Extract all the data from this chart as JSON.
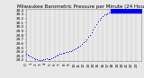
{
  "title": "Milwaukee Barometric Pressure per Minute (24 Hours)",
  "background_color": "#e8e8e8",
  "plot_bg_color": "#e8e8e8",
  "grid_color": "#aaaaaa",
  "dot_color": "#0000ff",
  "highlight_color": "#0000ff",
  "xlim": [
    0,
    1440
  ],
  "ylim": [
    29.18,
    30.42
  ],
  "xtick_hours": [
    0,
    1,
    2,
    3,
    4,
    5,
    6,
    7,
    8,
    9,
    10,
    11,
    12,
    13,
    14,
    15,
    16,
    17,
    18,
    19,
    20,
    21,
    22,
    23
  ],
  "ytick_labels": [
    "29.2",
    "29.3",
    "29.4",
    "29.5",
    "29.6",
    "29.7",
    "29.8",
    "29.9",
    "30.0",
    "30.1",
    "30.2",
    "30.3",
    "30.4"
  ],
  "ytick_vals": [
    29.2,
    29.3,
    29.4,
    29.5,
    29.6,
    29.7,
    29.8,
    29.9,
    30.0,
    30.1,
    30.2,
    30.3,
    30.4
  ],
  "pressure_data": [
    [
      0,
      29.35
    ],
    [
      20,
      29.32
    ],
    [
      40,
      29.3
    ],
    [
      60,
      29.28
    ],
    [
      80,
      29.26
    ],
    [
      100,
      29.24
    ],
    [
      120,
      29.22
    ],
    [
      140,
      29.21
    ],
    [
      160,
      29.2
    ],
    [
      180,
      29.2
    ],
    [
      200,
      29.2
    ],
    [
      220,
      29.22
    ],
    [
      240,
      29.23
    ],
    [
      260,
      29.24
    ],
    [
      280,
      29.23
    ],
    [
      300,
      29.23
    ],
    [
      320,
      29.25
    ],
    [
      340,
      29.27
    ],
    [
      360,
      29.28
    ],
    [
      380,
      29.3
    ],
    [
      400,
      29.32
    ],
    [
      420,
      29.34
    ],
    [
      440,
      29.36
    ],
    [
      460,
      29.37
    ],
    [
      480,
      29.38
    ],
    [
      500,
      29.39
    ],
    [
      520,
      29.4
    ],
    [
      540,
      29.41
    ],
    [
      560,
      29.42
    ],
    [
      580,
      29.44
    ],
    [
      600,
      29.46
    ],
    [
      620,
      29.48
    ],
    [
      640,
      29.5
    ],
    [
      660,
      29.52
    ],
    [
      680,
      29.55
    ],
    [
      700,
      29.58
    ],
    [
      720,
      29.62
    ],
    [
      740,
      29.66
    ],
    [
      760,
      29.7
    ],
    [
      780,
      29.75
    ],
    [
      800,
      29.8
    ],
    [
      820,
      29.86
    ],
    [
      840,
      29.93
    ],
    [
      860,
      30.0
    ],
    [
      880,
      30.07
    ],
    [
      900,
      30.13
    ],
    [
      920,
      30.18
    ],
    [
      940,
      30.22
    ],
    [
      960,
      30.26
    ],
    [
      980,
      30.29
    ],
    [
      1000,
      30.31
    ],
    [
      1020,
      30.33
    ],
    [
      1040,
      30.35
    ],
    [
      1060,
      30.37
    ],
    [
      1080,
      30.38
    ],
    [
      1100,
      30.38
    ],
    [
      1120,
      30.38
    ],
    [
      1140,
      30.38
    ],
    [
      1160,
      30.38
    ],
    [
      1180,
      30.38
    ],
    [
      1200,
      30.38
    ],
    [
      1220,
      30.38
    ],
    [
      1240,
      30.38
    ],
    [
      1260,
      30.38
    ],
    [
      1280,
      30.38
    ],
    [
      1300,
      30.38
    ],
    [
      1320,
      30.38
    ],
    [
      1340,
      30.38
    ],
    [
      1360,
      30.38
    ],
    [
      1380,
      30.38
    ],
    [
      1400,
      30.38
    ],
    [
      1420,
      30.38
    ],
    [
      1440,
      30.38
    ]
  ],
  "highlight_xstart": 1060,
  "highlight_xend": 1440,
  "highlight_ytop": 30.42,
  "highlight_ybot": 30.35,
  "title_fontsize": 4.0,
  "tick_fontsize": 3.0
}
